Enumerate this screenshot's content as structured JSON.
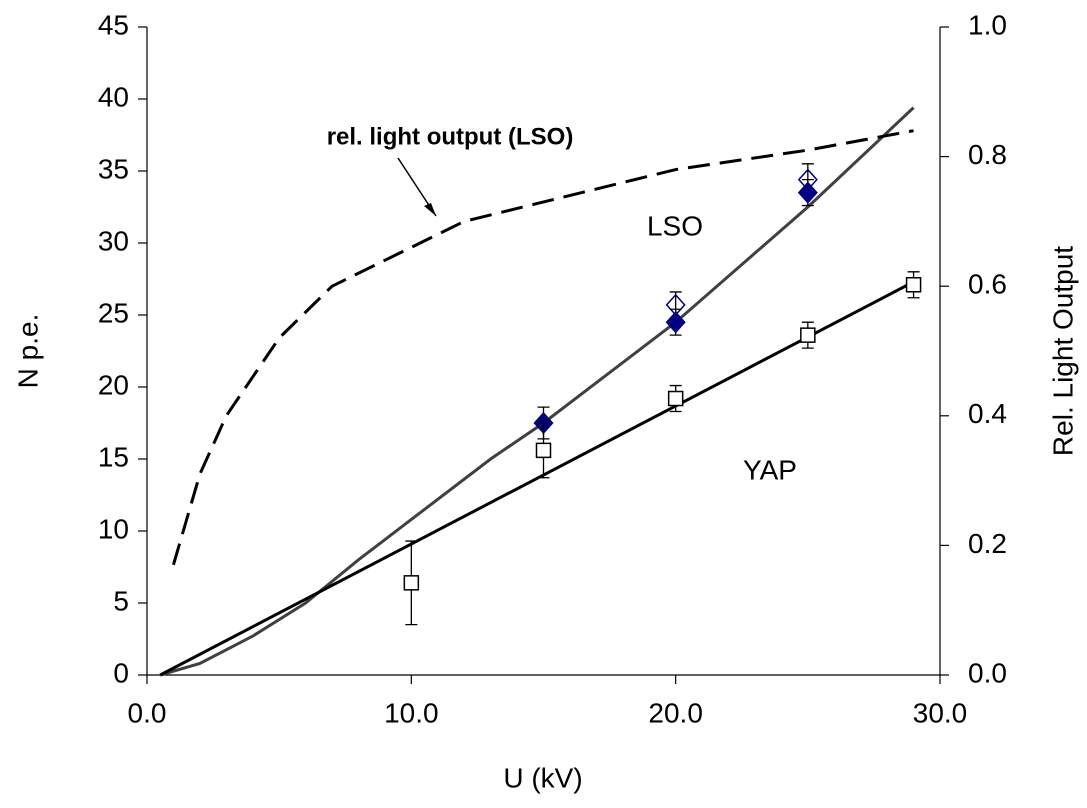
{
  "chart_data": {
    "type": "line",
    "xlabel": "U (kV)",
    "ylabel": "N p.e.",
    "y2label": "Rel. Light Output",
    "xlim": [
      0,
      30
    ],
    "xticks": [
      {
        "value": 0,
        "label": "0.0"
      },
      {
        "value": 10,
        "label": "10.0"
      },
      {
        "value": 20,
        "label": "20.0"
      },
      {
        "value": 30,
        "label": "30.0"
      }
    ],
    "ylim": [
      0,
      45
    ],
    "yticks": [
      0,
      5,
      10,
      15,
      20,
      25,
      30,
      35,
      40,
      45
    ],
    "y2lim": [
      0,
      1
    ],
    "y2ticks": [
      {
        "value": 0,
        "label": "0.0"
      },
      0.2,
      0.4,
      0.6,
      0.8,
      {
        "value": 1,
        "label": "1.0"
      }
    ],
    "series": [
      {
        "name": "LSO",
        "kind": "line",
        "color": "#404040",
        "x": [
          0.5,
          2,
          4,
          6,
          8,
          10,
          13,
          15,
          20,
          25,
          29
        ],
        "values": [
          0,
          0.8,
          2.7,
          5,
          8,
          10.8,
          15,
          17.5,
          24.5,
          32.5,
          39.4
        ]
      },
      {
        "name": "YAP",
        "kind": "line",
        "color": "#000000",
        "x": [
          0.5,
          29
        ],
        "values": [
          0,
          27.3
        ]
      },
      {
        "name": "rel. light output (LSO)",
        "kind": "dashed",
        "axis": "y2",
        "color": "#000000",
        "x": [
          1,
          2,
          3,
          4,
          5,
          6,
          7,
          8,
          10,
          12,
          15,
          20,
          25,
          29
        ],
        "values": [
          0.17,
          0.31,
          0.4,
          0.46,
          0.52,
          0.56,
          0.6,
          0.62,
          0.66,
          0.7,
          0.73,
          0.78,
          0.81,
          0.84
        ]
      },
      {
        "kind": "diamond-open",
        "color": "#000080",
        "x": [
          20,
          25
        ],
        "values": [
          25.7,
          34.4
        ],
        "errors": [
          0.9,
          1.1
        ]
      },
      {
        "kind": "diamond-filled",
        "color": "#000080",
        "x": [
          15,
          20,
          25
        ],
        "values": [
          17.5,
          24.5,
          33.5
        ],
        "errors": [
          1.1,
          0.9,
          0.9
        ]
      },
      {
        "kind": "square-open",
        "color": "#000000",
        "x": [
          10,
          15,
          20,
          25,
          29
        ],
        "values": [
          6.4,
          15.6,
          19.2,
          23.6,
          27.1
        ],
        "errors": [
          2.9,
          1.9,
          0.9,
          0.9,
          0.9
        ]
      }
    ]
  }
}
